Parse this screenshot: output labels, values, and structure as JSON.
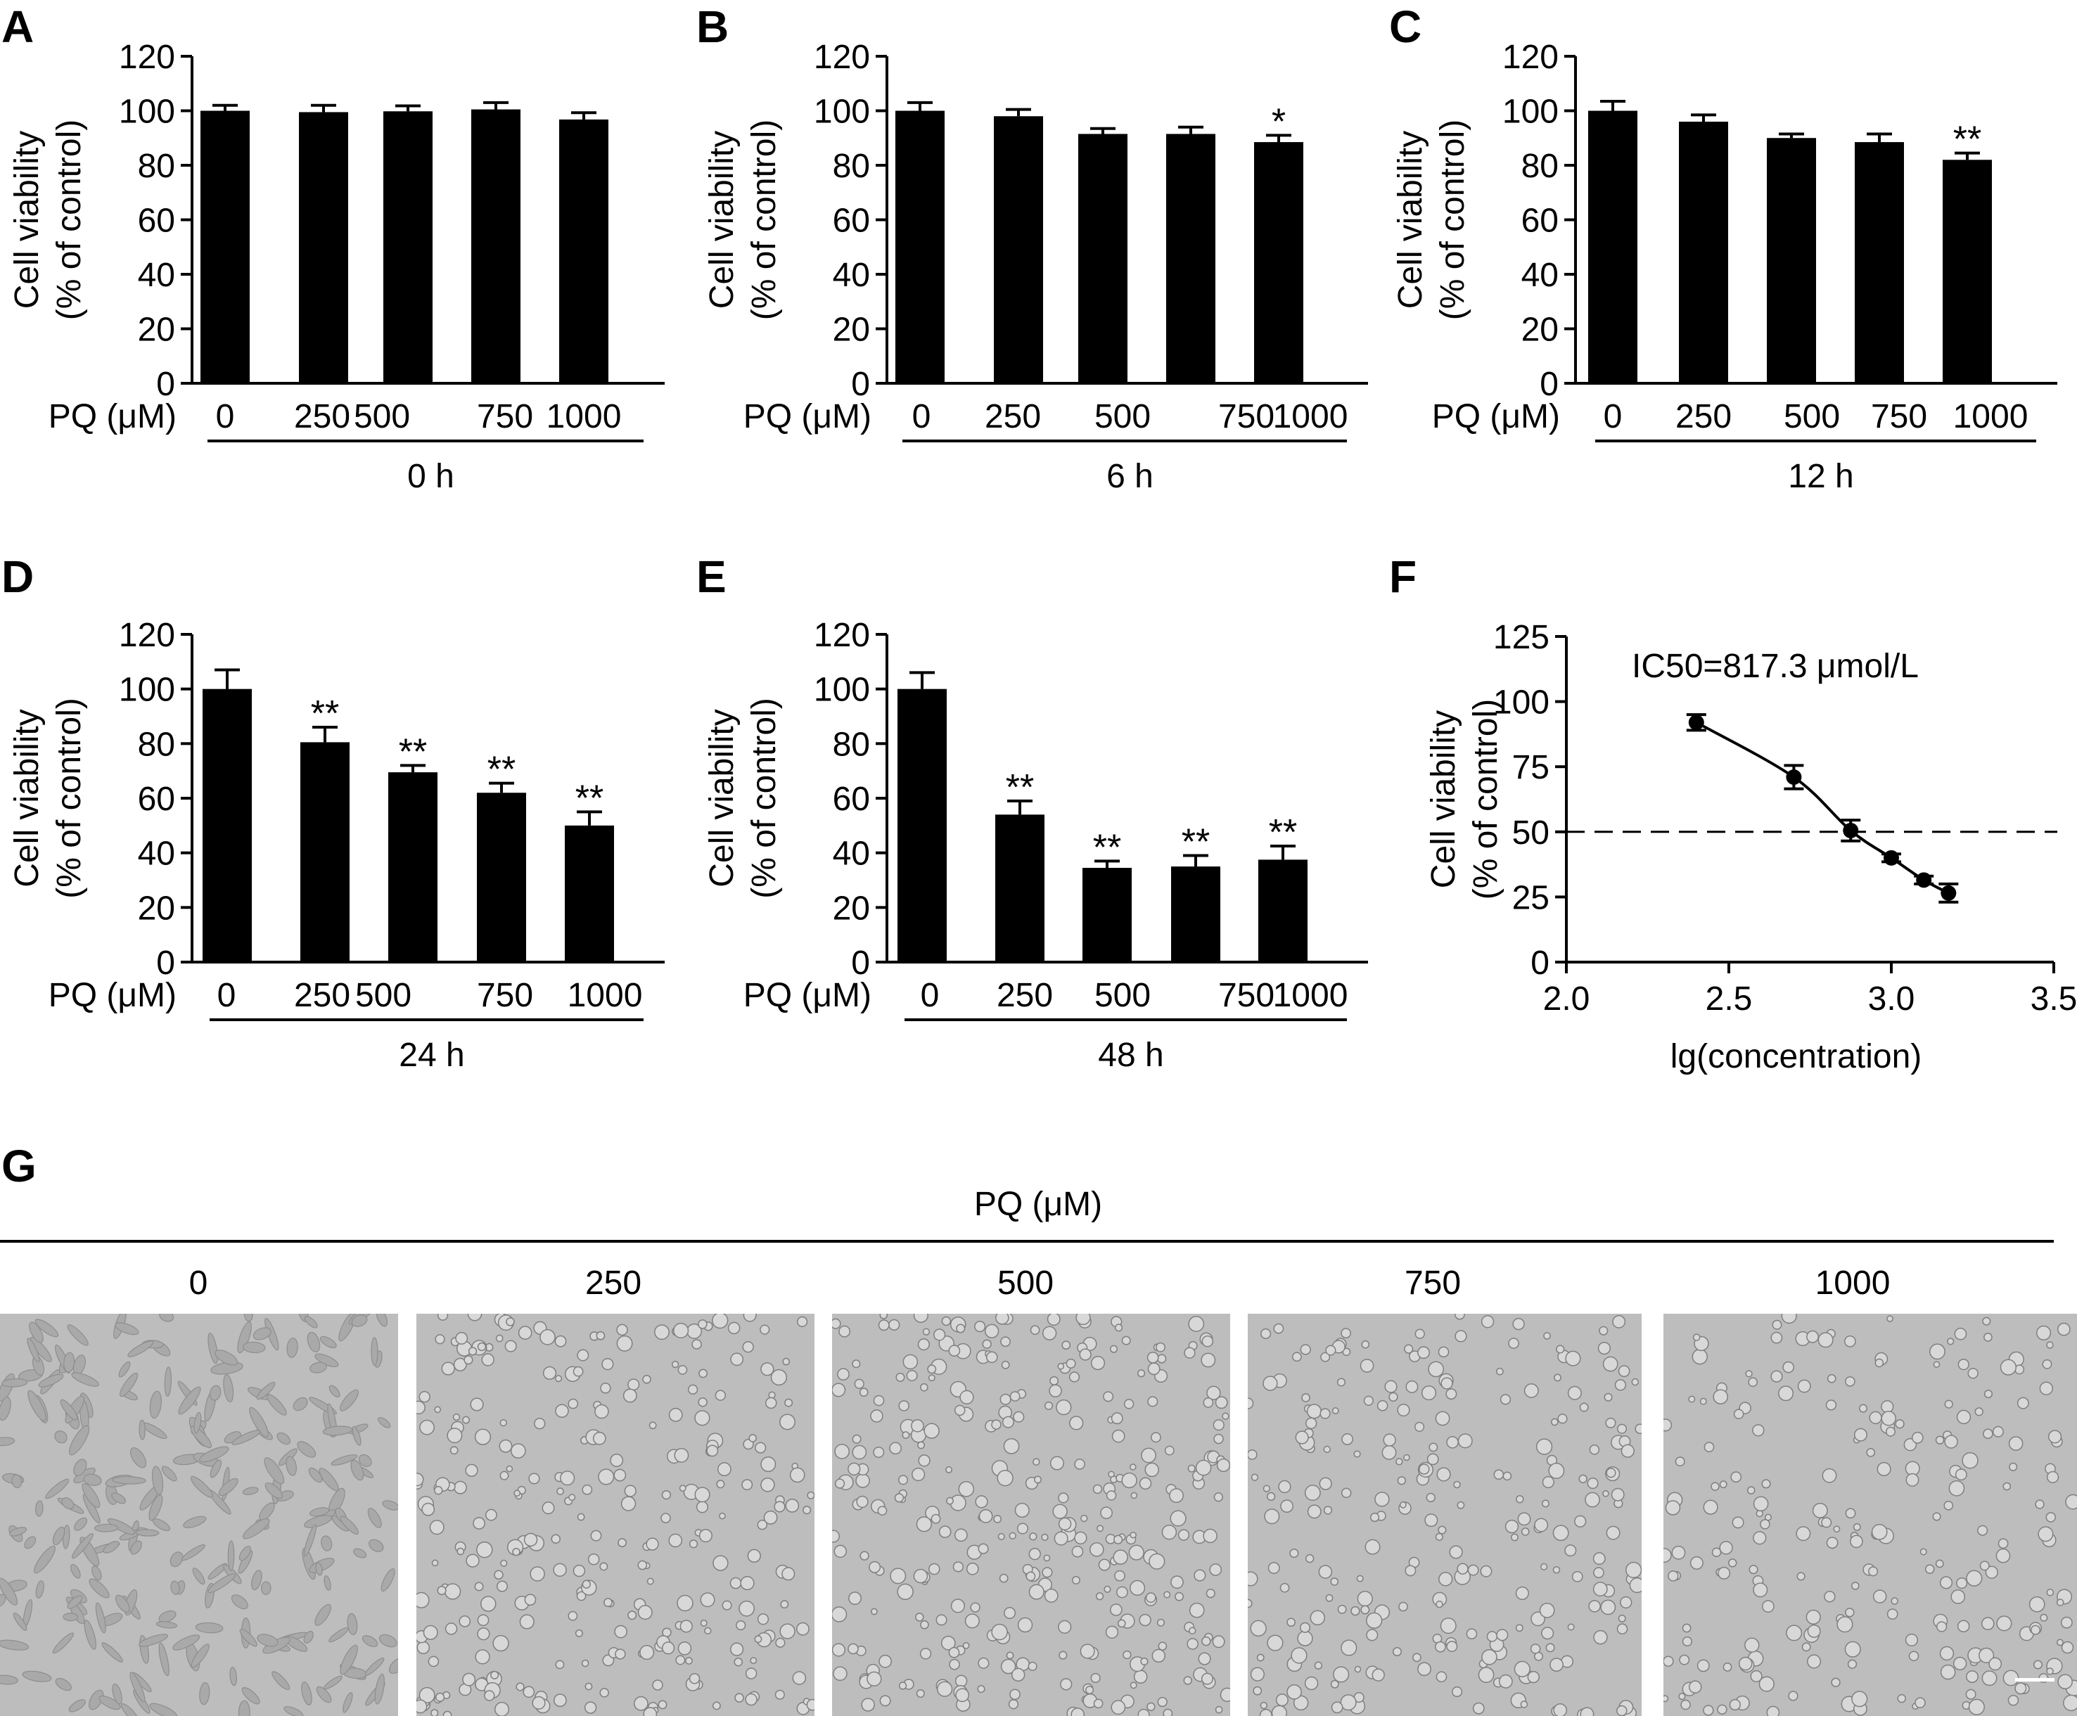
{
  "chart_data": [
    {
      "type": "bar",
      "panel": "A",
      "categories": [
        "0",
        "250",
        "500",
        "750",
        "1000"
      ],
      "values": [
        100,
        99.5,
        99.8,
        100.5,
        96.8
      ],
      "errors": [
        2,
        2.5,
        2,
        2.5,
        2.5
      ],
      "significance": [
        "",
        "",
        "",
        "",
        ""
      ],
      "ylabel": [
        "Cell viability",
        "(% of control)"
      ],
      "xlabel": "PQ (μM)",
      "group_label": "0 h",
      "ylim": [
        0,
        120
      ],
      "yticks": [
        0,
        20,
        40,
        60,
        80,
        100,
        120
      ]
    },
    {
      "type": "bar",
      "panel": "B",
      "categories": [
        "0",
        "250",
        "500",
        "750",
        "1000"
      ],
      "values": [
        100,
        98,
        91.5,
        91.5,
        88.5
      ],
      "errors": [
        3,
        2.5,
        2,
        2.5,
        2.5
      ],
      "significance": [
        "",
        "",
        "",
        "",
        "*"
      ],
      "ylabel": [
        "Cell viability",
        "(% of control)"
      ],
      "xlabel": "PQ (μM)",
      "group_label": "6 h",
      "ylim": [
        0,
        120
      ],
      "yticks": [
        0,
        20,
        40,
        60,
        80,
        100,
        120
      ]
    },
    {
      "type": "bar",
      "panel": "C",
      "categories": [
        "0",
        "250",
        "500",
        "750",
        "1000"
      ],
      "values": [
        100,
        96,
        90,
        88.5,
        82
      ],
      "errors": [
        3.5,
        2.5,
        1.5,
        3,
        2.5
      ],
      "significance": [
        "",
        "",
        "",
        "",
        "**"
      ],
      "ylabel": [
        "Cell viability",
        "(% of control)"
      ],
      "xlabel": "PQ (μM)",
      "group_label": "12 h",
      "ylim": [
        0,
        120
      ],
      "yticks": [
        0,
        20,
        40,
        60,
        80,
        100,
        120
      ]
    },
    {
      "type": "bar",
      "panel": "D",
      "categories": [
        "0",
        "250",
        "500",
        "750",
        "1000"
      ],
      "values": [
        100,
        80.5,
        69.5,
        62,
        50
      ],
      "errors": [
        7,
        5.5,
        2.5,
        3.5,
        5
      ],
      "significance": [
        "",
        "**",
        "**",
        "**",
        "**"
      ],
      "ylabel": [
        "Cell viability",
        "(% of control)"
      ],
      "xlabel": "PQ (μM)",
      "group_label": "24 h",
      "ylim": [
        0,
        120
      ],
      "yticks": [
        0,
        20,
        40,
        60,
        80,
        100,
        120
      ]
    },
    {
      "type": "bar",
      "panel": "E",
      "categories": [
        "0",
        "250",
        "500",
        "750",
        "1000"
      ],
      "values": [
        100,
        54,
        34.5,
        35,
        37.5
      ],
      "errors": [
        6,
        5,
        2.5,
        4,
        5
      ],
      "significance": [
        "",
        "**",
        "**",
        "**",
        "**"
      ],
      "ylabel": [
        "Cell viability",
        "(% of control)"
      ],
      "xlabel": "PQ (μM)",
      "group_label": "48 h",
      "ylim": [
        0,
        120
      ],
      "yticks": [
        0,
        20,
        40,
        60,
        80,
        100,
        120
      ]
    },
    {
      "type": "scatter",
      "panel": "F",
      "x": [
        2.4,
        2.7,
        2.875,
        3.0,
        3.1,
        3.176
      ],
      "y": [
        92,
        71,
        50.5,
        40,
        31.5,
        26.5
      ],
      "errors": [
        3,
        4.5,
        4,
        1.5,
        1.5,
        3.5
      ],
      "fit_curve": true,
      "reference_line_y": 50,
      "annotation": "IC50=817.3 μmol/L",
      "ylabel": [
        "Cell viability",
        "(% of control)"
      ],
      "xlabel": "lg(concentration)",
      "xlim": [
        2.0,
        3.5
      ],
      "xticks": [
        2.0,
        2.5,
        3.0,
        3.5
      ],
      "xtick_labels": [
        "2.0",
        "2.5",
        "3.0",
        "3.5"
      ],
      "ylim": [
        0,
        125
      ],
      "yticks": [
        0,
        25,
        50,
        75,
        100,
        125
      ]
    }
  ],
  "panel_letters": [
    "A",
    "B",
    "C",
    "D",
    "E",
    "F",
    "G"
  ],
  "micrographs": {
    "header": "PQ (μM)",
    "labels": [
      "0",
      "250",
      "500",
      "750",
      "1000"
    ]
  },
  "colors": {
    "bar": "#000000",
    "axis": "#000000",
    "image_bg": "#bdbdbd"
  }
}
